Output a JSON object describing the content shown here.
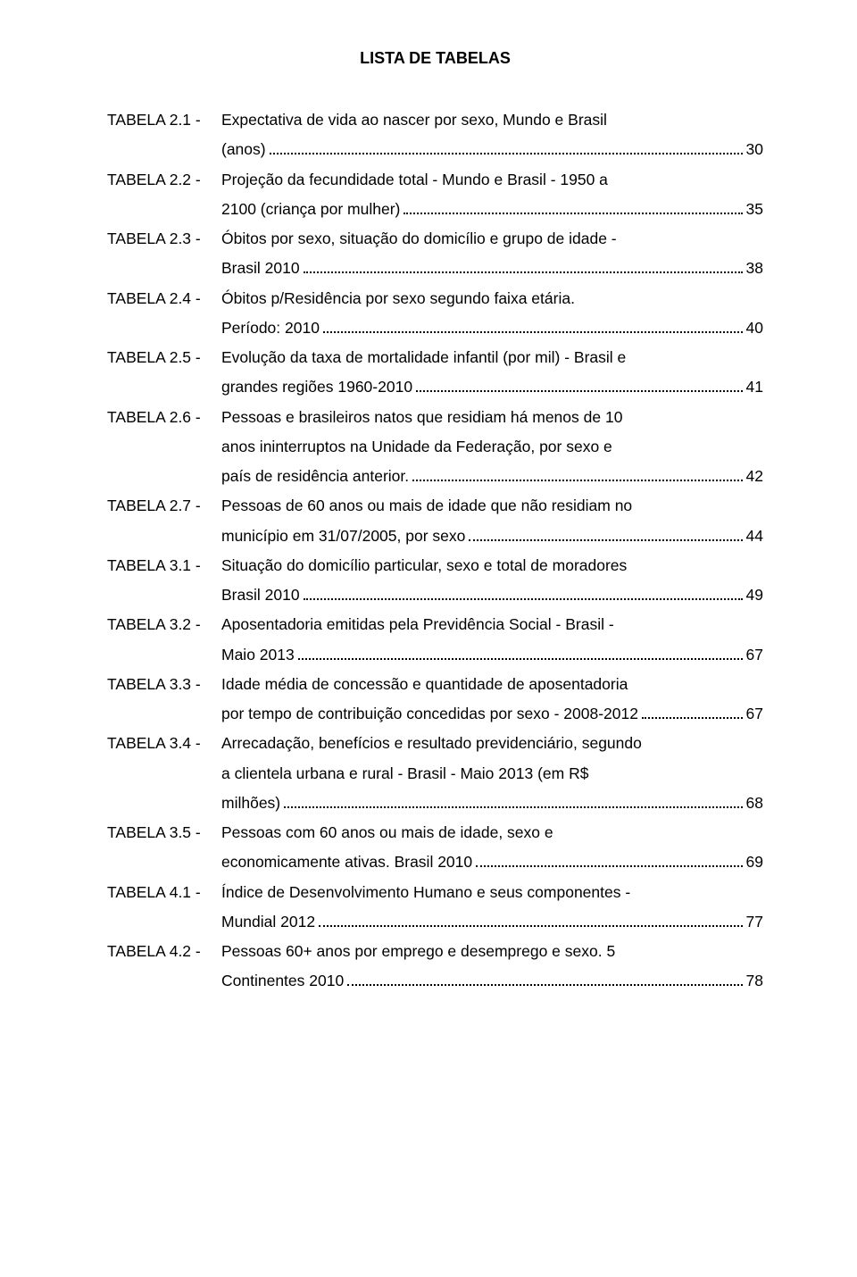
{
  "title": "LISTA DE TABELAS",
  "entries": [
    {
      "label": "TABELA 2.1 -",
      "lines": [
        "Expectativa de vida ao nascer por sexo, Mundo e Brasil"
      ],
      "last": "(anos)",
      "page": "30"
    },
    {
      "label": "TABELA 2.2 -",
      "lines": [
        "Projeção da fecundidade total - Mundo e Brasil - 1950 a"
      ],
      "last": "2100 (criança por mulher)",
      "page": "35"
    },
    {
      "label": "TABELA 2.3 -",
      "lines": [
        "Óbitos por sexo, situação do domicílio e grupo de idade -"
      ],
      "last": "Brasil 2010",
      "page": "38"
    },
    {
      "label": "TABELA 2.4 -",
      "lines": [
        "Óbitos p/Residência por sexo segundo faixa etária."
      ],
      "last": "Período: 2010",
      "page": "40"
    },
    {
      "label": "TABELA 2.5 -",
      "lines": [
        "Evolução da taxa de mortalidade infantil (por mil) - Brasil e"
      ],
      "last": "grandes regiões 1960-2010",
      "page": "41"
    },
    {
      "label": "TABELA 2.6 -",
      "lines": [
        "Pessoas e brasileiros natos que residiam há menos de 10",
        "anos ininterruptos na Unidade da Federação, por sexo e"
      ],
      "last": "país de residência anterior.",
      "page": "42"
    },
    {
      "label": "TABELA 2.7 -",
      "lines": [
        "Pessoas de 60 anos ou mais de idade que não residiam no"
      ],
      "last": "município em 31/07/2005, por sexo",
      "page": "44"
    },
    {
      "label": "TABELA 3.1 -",
      "lines": [
        "Situação do domicílio particular, sexo e total de moradores"
      ],
      "last": "Brasil 2010",
      "page": "49"
    },
    {
      "label": "TABELA 3.2 -",
      "lines": [
        "Aposentadoria emitidas pela Previdência Social - Brasil -"
      ],
      "last": "Maio 2013",
      "page": "67"
    },
    {
      "label": "TABELA 3.3 -",
      "lines": [
        "Idade média de concessão e quantidade de aposentadoria"
      ],
      "last": "por tempo de contribuição concedidas por sexo - 2008-2012",
      "page": "67"
    },
    {
      "label": "TABELA 3.4 -",
      "lines": [
        "Arrecadação, benefícios e resultado previdenciário, segundo",
        "a clientela urbana e rural - Brasil - Maio 2013 (em R$"
      ],
      "last": "milhões)",
      "page": "68"
    },
    {
      "label": "TABELA 3.5 -",
      "lines": [
        "Pessoas com 60 anos ou mais de idade, sexo e"
      ],
      "last": "economicamente ativas. Brasil 2010",
      "page": "69"
    },
    {
      "label": "TABELA 4.1 -",
      "lines": [
        "Índice de Desenvolvimento Humano e seus componentes -"
      ],
      "last": "Mundial 2012",
      "page": "77"
    },
    {
      "label": "TABELA 4.2 -",
      "lines": [
        "Pessoas 60+ anos por emprego e desemprego e sexo. 5"
      ],
      "last": "Continentes 2010",
      "page": "78"
    }
  ]
}
